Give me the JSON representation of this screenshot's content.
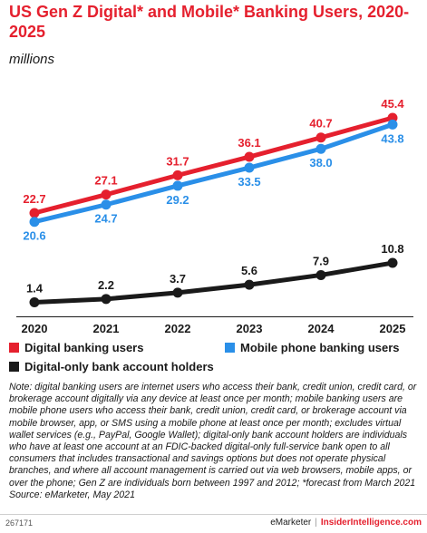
{
  "header": {
    "title": "US Gen Z Digital* and Mobile* Banking Users, 2020-2025",
    "subtitle": "millions"
  },
  "colors": {
    "accent": "#e5202e",
    "digital": "#e5202e",
    "mobile": "#2a8fe8",
    "digital_only": "#1a1a1a"
  },
  "chart_data": {
    "type": "line",
    "x": [
      "2020",
      "2021",
      "2022",
      "2023",
      "2024",
      "2025"
    ],
    "series": [
      {
        "name": "Digital banking users",
        "key": "digital",
        "values": [
          22.7,
          27.1,
          31.7,
          36.1,
          40.7,
          45.4
        ],
        "labels": [
          "22.7",
          "27.1",
          "31.7",
          "36.1",
          "40.7",
          "45.4"
        ]
      },
      {
        "name": "Mobile phone banking users",
        "key": "mobile",
        "values": [
          20.6,
          24.7,
          29.2,
          33.5,
          38.0,
          43.8
        ],
        "labels": [
          "20.6",
          "24.7",
          "29.2",
          "33.5",
          "38.0",
          "43.8"
        ]
      },
      {
        "name": "Digital-only bank account holders",
        "key": "digital_only",
        "values": [
          1.4,
          2.2,
          3.7,
          5.6,
          7.9,
          10.8
        ],
        "labels": [
          "1.4",
          "2.2",
          "3.7",
          "5.6",
          "7.9",
          "10.8"
        ]
      }
    ],
    "xlabel": "",
    "ylabel": "",
    "grid": false,
    "legend": "bottom"
  },
  "legend": [
    {
      "label": "Digital banking users",
      "key": "digital"
    },
    {
      "label": "Mobile phone banking users",
      "key": "mobile"
    },
    {
      "label": "Digital-only bank account holders",
      "key": "digital_only"
    }
  ],
  "note": "Note: digital banking users are internet users who access their bank, credit union, credit card, or brokerage account digitally via any device at least once per month; mobile banking users are mobile phone users who access their bank, credit union, credit card, or brokerage account via mobile browser, app, or SMS using a mobile phone at least once per month; excludes virtual wallet services (e.g., PayPal, Google Wallet); digital-only bank account holders are individuals who have at least one account at an FDIC-backed digital-only full-service bank open to all consumers that includes transactional and savings options but does not operate physical branches, and where all account management is carried out via web browsers, mobile apps, or over the phone; Gen Z are individuals born between 1997 and 2012; *forecast from March 2021",
  "source": "Source: eMarketer, May 2021",
  "footer": {
    "chart_id": "267171",
    "brand_left": "eMarketer",
    "separator": "|",
    "brand_right": "InsiderIntelligence.com"
  }
}
